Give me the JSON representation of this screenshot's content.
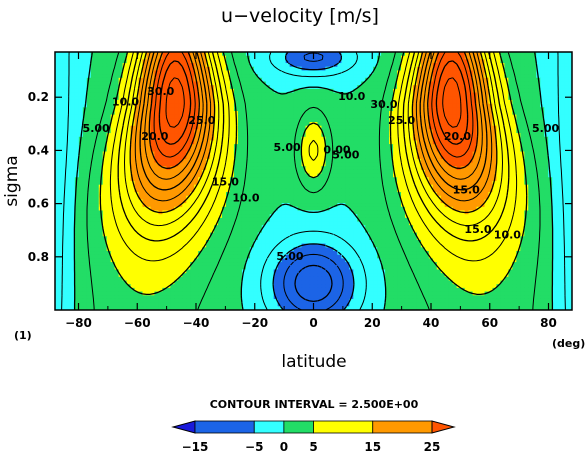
{
  "chart_data": {
    "type": "heatmap",
    "title": "u−velocity [m/s]",
    "xlabel": "latitude",
    "ylabel": "sigma",
    "x_unit": "(deg)",
    "panel_label": "(1)",
    "xlim": [
      -88,
      88
    ],
    "ylim": [
      1.0,
      0.03
    ],
    "x_ticks": [
      -80,
      -60,
      -40,
      -20,
      0,
      20,
      40,
      60,
      80
    ],
    "x_tick_labels": [
      "−80",
      "−60",
      "−40",
      "−20",
      "0",
      "20",
      "40",
      "60",
      "80"
    ],
    "y_ticks": [
      0.2,
      0.4,
      0.6,
      0.8
    ],
    "y_tick_labels": [
      "0.2",
      "0.4",
      "0.6",
      "0.8"
    ],
    "contour_interval_text": "CONTOUR INTERVAL = 2.500E+00",
    "contour_interval": 2.5,
    "jets": [
      {
        "lat": -47,
        "sigma": 0.22,
        "max_u": 34
      },
      {
        "lat": 47,
        "sigma": 0.22,
        "max_u": 34
      }
    ],
    "equatorial_minimum": {
      "lat": 0,
      "sigma": 0.9,
      "min_u": -12
    },
    "contour_labels": [
      {
        "text": "30.0",
        "lat": -52,
        "sigma": 0.18
      },
      {
        "text": "25.0",
        "lat": -38,
        "sigma": 0.29
      },
      {
        "text": "20.0",
        "lat": -54,
        "sigma": 0.35
      },
      {
        "text": "15.0",
        "lat": -30,
        "sigma": 0.52
      },
      {
        "text": "10.0",
        "lat": -23,
        "sigma": 0.58
      },
      {
        "text": "10.0",
        "lat": -64,
        "sigma": 0.22
      },
      {
        "text": "5.00",
        "lat": -74,
        "sigma": 0.32
      },
      {
        "text": "5.00",
        "lat": -9,
        "sigma": 0.39
      },
      {
        "text": "0.00",
        "lat": 8,
        "sigma": 0.4
      },
      {
        "text": "5.00",
        "lat": 11,
        "sigma": 0.42
      },
      {
        "text": "5.00",
        "lat": -8,
        "sigma": 0.8
      },
      {
        "text": "10.0",
        "lat": 13,
        "sigma": 0.2
      },
      {
        "text": "30.0",
        "lat": 24,
        "sigma": 0.23
      },
      {
        "text": "25.0",
        "lat": 30,
        "sigma": 0.29
      },
      {
        "text": "20.0",
        "lat": 49,
        "sigma": 0.35
      },
      {
        "text": "15.0",
        "lat": 52,
        "sigma": 0.55
      },
      {
        "text": "15.0",
        "lat": 56,
        "sigma": 0.7
      },
      {
        "text": "10.0",
        "lat": 66,
        "sigma": 0.72
      },
      {
        "text": "5.00",
        "lat": 79,
        "sigma": 0.32
      }
    ],
    "colorbar": {
      "ticks": [
        -15,
        -5,
        0,
        5,
        15,
        25
      ],
      "tick_labels": [
        "−15",
        "−5",
        "0",
        "5",
        "15",
        "25"
      ],
      "colors": {
        "below_minus15": "#1a1adb",
        "minus15_to_minus5": "#1c64e6",
        "minus5_to_0": "#33ffff",
        "0_to_5": "#22dd66",
        "5_to_15": "#ffff00",
        "15_to_25": "#ff9900",
        "above_25": "#ff5500"
      }
    }
  }
}
